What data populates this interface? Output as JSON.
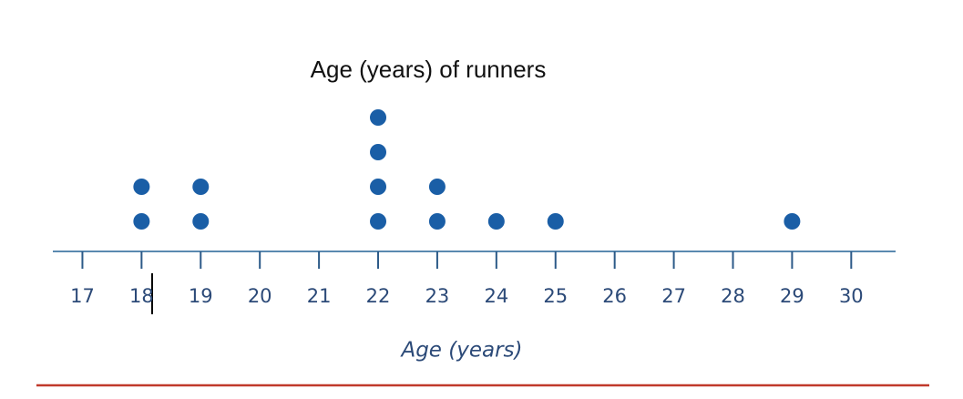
{
  "chart_data": {
    "type": "dot",
    "title": "Age (years) of runners",
    "x_label": "Age (years)",
    "x": [
      18,
      19,
      22,
      23,
      24,
      25,
      29
    ],
    "values": [
      2,
      2,
      4,
      2,
      1,
      1,
      1
    ],
    "color": "#1a5ea6",
    "xlim": [
      16.5,
      30.75
    ],
    "xticks": [
      17,
      18,
      19,
      20,
      21,
      22,
      23,
      24,
      25,
      26,
      27,
      28,
      29,
      30
    ]
  }
}
